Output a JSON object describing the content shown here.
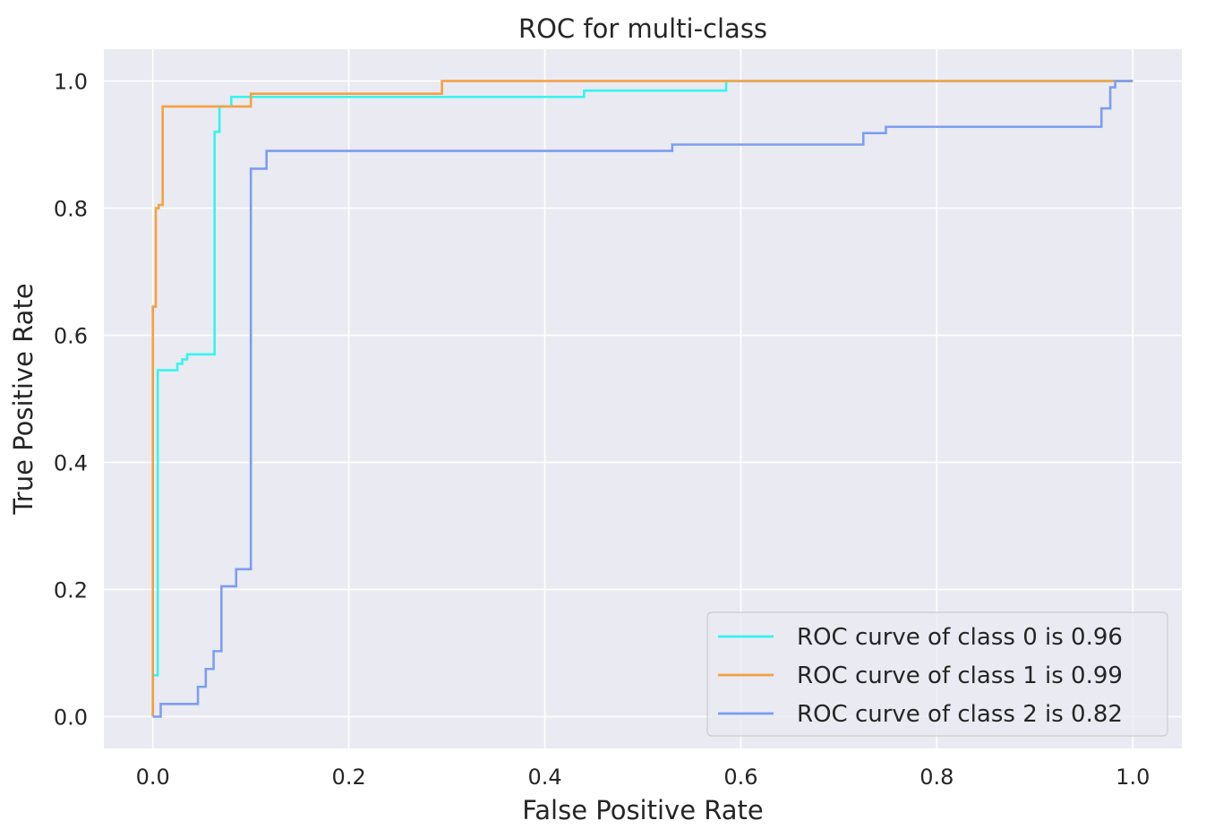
{
  "chart_data": {
    "type": "line",
    "title": "ROC for multi-class",
    "xlabel": "False Positive Rate",
    "ylabel": "True Positive Rate",
    "xlim": [
      -0.05,
      1.05
    ],
    "ylim": [
      -0.05,
      1.05
    ],
    "xticks": [
      0.0,
      0.2,
      0.4,
      0.6,
      0.8,
      1.0
    ],
    "yticks": [
      0.0,
      0.2,
      0.4,
      0.6,
      0.8,
      1.0
    ],
    "xtick_labels": [
      "0.0",
      "0.2",
      "0.4",
      "0.6",
      "0.8",
      "1.0"
    ],
    "ytick_labels": [
      "0.0",
      "0.2",
      "0.4",
      "0.6",
      "0.8",
      "1.0"
    ],
    "grid": true,
    "legend_position": "lower-right",
    "background_color": "#eaeaf2",
    "grid_color": "#ffffff",
    "series": [
      {
        "name": "ROC curve of class 0 is 0.96",
        "color": "#33f5ef",
        "x": [
          0.0,
          0.0,
          0.005,
          0.005,
          0.008,
          0.008,
          0.025,
          0.025,
          0.03,
          0.03,
          0.035,
          0.035,
          0.063,
          0.063,
          0.068,
          0.068,
          0.08,
          0.08,
          0.1,
          0.1,
          0.44,
          0.44,
          0.585,
          0.585,
          1.0
        ],
        "y": [
          0.0,
          0.065,
          0.065,
          0.545,
          0.545,
          0.545,
          0.545,
          0.555,
          0.555,
          0.562,
          0.562,
          0.57,
          0.57,
          0.92,
          0.92,
          0.96,
          0.96,
          0.975,
          0.975,
          0.975,
          0.975,
          0.985,
          0.985,
          1.0,
          1.0
        ]
      },
      {
        "name": "ROC curve of class 1 is 0.99",
        "color": "#f5a040",
        "x": [
          0.0,
          0.0,
          0.003,
          0.003,
          0.006,
          0.006,
          0.01,
          0.01,
          0.1,
          0.1,
          0.295,
          0.295,
          1.0
        ],
        "y": [
          0.0,
          0.645,
          0.645,
          0.8,
          0.8,
          0.805,
          0.805,
          0.96,
          0.96,
          0.98,
          0.98,
          1.0,
          1.0
        ]
      },
      {
        "name": "ROC curve of class 2 is 0.82",
        "color": "#7b9ef0",
        "x": [
          0.0,
          0.0,
          0.008,
          0.008,
          0.046,
          0.046,
          0.054,
          0.054,
          0.062,
          0.062,
          0.07,
          0.07,
          0.085,
          0.085,
          0.1,
          0.1,
          0.116,
          0.116,
          0.53,
          0.53,
          0.725,
          0.725,
          0.748,
          0.748,
          0.968,
          0.968,
          0.977,
          0.977,
          0.982,
          0.982,
          0.99,
          0.99,
          1.0
        ],
        "y": [
          0.0,
          0.0,
          0.0,
          0.02,
          0.02,
          0.047,
          0.047,
          0.075,
          0.075,
          0.103,
          0.103,
          0.205,
          0.205,
          0.232,
          0.232,
          0.862,
          0.862,
          0.89,
          0.89,
          0.9,
          0.9,
          0.918,
          0.918,
          0.928,
          0.928,
          0.957,
          0.957,
          0.99,
          0.99,
          1.0,
          1.0,
          1.0,
          1.0
        ]
      }
    ]
  }
}
